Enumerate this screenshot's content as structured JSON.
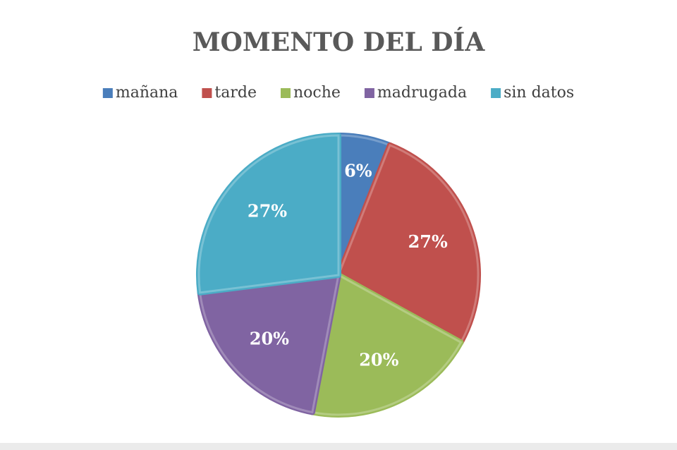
{
  "chart_data": {
    "type": "pie",
    "title": "MOMENTO DEL DÍA",
    "categories": [
      "mañana",
      "tarde",
      "noche",
      "madrugada",
      "sin datos"
    ],
    "values": [
      6,
      27,
      20,
      20,
      27
    ],
    "value_labels": [
      "6%",
      "27%",
      "20%",
      "20%",
      "27%"
    ],
    "colors": [
      "#4a7ebb",
      "#c0504d",
      "#9bbb59",
      "#8064a2",
      "#4bacc6"
    ],
    "legend": "top"
  }
}
